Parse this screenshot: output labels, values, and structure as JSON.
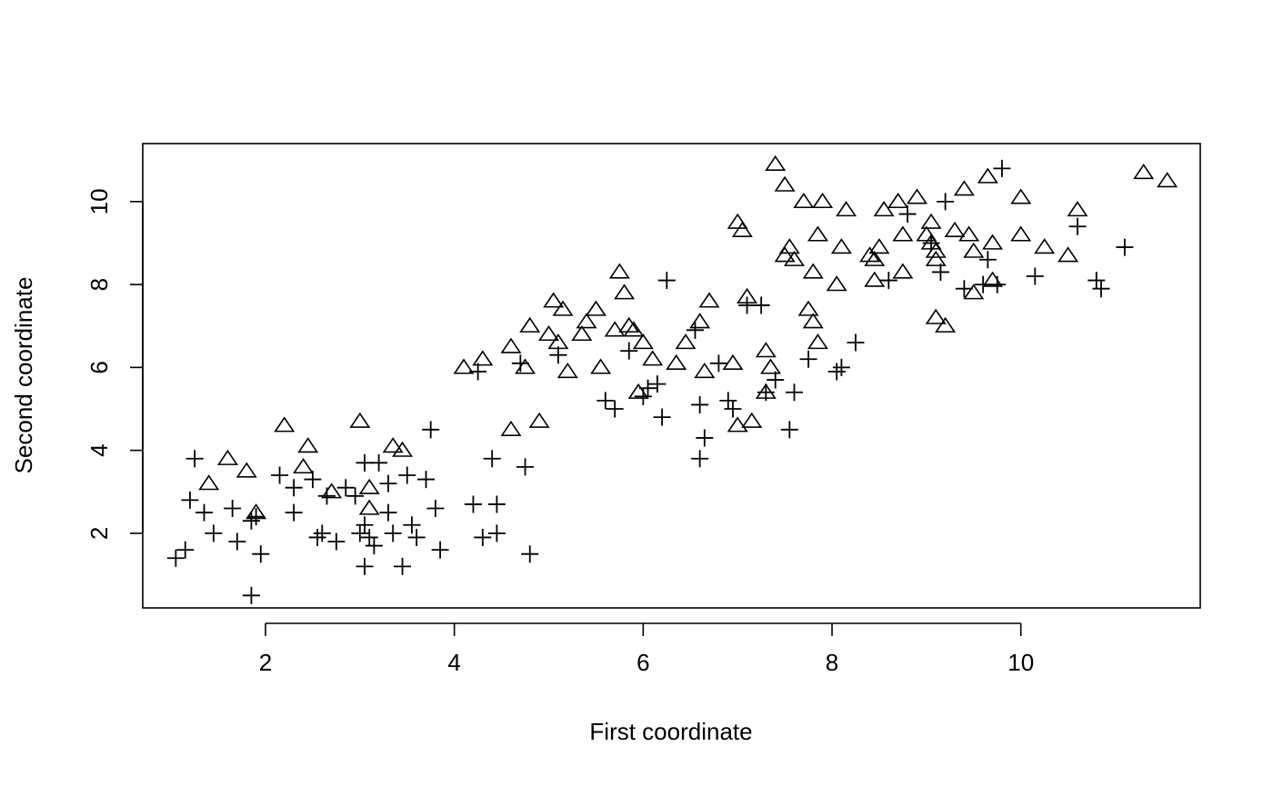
{
  "chart_data": {
    "type": "scatter",
    "title": "",
    "xlabel": "First coordinate",
    "ylabel": "Second coordinate",
    "xlim": [
      0.7,
      11.9
    ],
    "ylim": [
      0.2,
      11.4
    ],
    "xticks": [
      2,
      4,
      6,
      8,
      10
    ],
    "yticks": [
      2,
      4,
      6,
      8,
      10
    ],
    "grid": false,
    "legend": "none",
    "series": [
      {
        "marker": "triangle",
        "color": "#000000",
        "points": [
          [
            1.4,
            3.2
          ],
          [
            1.6,
            3.8
          ],
          [
            1.8,
            3.5
          ],
          [
            1.9,
            2.5
          ],
          [
            2.2,
            4.6
          ],
          [
            2.4,
            3.6
          ],
          [
            2.45,
            4.1
          ],
          [
            2.7,
            3.0
          ],
          [
            3.0,
            4.7
          ],
          [
            3.1,
            2.6
          ],
          [
            3.1,
            3.1
          ],
          [
            3.35,
            4.1
          ],
          [
            3.45,
            4.0
          ],
          [
            4.1,
            6.0
          ],
          [
            4.3,
            6.2
          ],
          [
            4.6,
            4.5
          ],
          [
            4.6,
            6.5
          ],
          [
            4.75,
            6.0
          ],
          [
            4.8,
            7.0
          ],
          [
            4.9,
            4.7
          ],
          [
            5.0,
            6.8
          ],
          [
            5.05,
            7.6
          ],
          [
            5.1,
            6.6
          ],
          [
            5.15,
            7.4
          ],
          [
            5.2,
            5.9
          ],
          [
            5.35,
            6.8
          ],
          [
            5.4,
            7.1
          ],
          [
            5.5,
            7.4
          ],
          [
            5.55,
            6.0
          ],
          [
            5.7,
            6.9
          ],
          [
            5.75,
            8.3
          ],
          [
            5.8,
            7.8
          ],
          [
            5.85,
            7.0
          ],
          [
            5.9,
            6.9
          ],
          [
            5.95,
            5.4
          ],
          [
            6.0,
            6.6
          ],
          [
            6.1,
            6.2
          ],
          [
            6.35,
            6.1
          ],
          [
            6.45,
            6.6
          ],
          [
            6.6,
            7.1
          ],
          [
            6.65,
            5.9
          ],
          [
            6.7,
            7.6
          ],
          [
            6.95,
            6.1
          ],
          [
            7.0,
            4.6
          ],
          [
            7.0,
            9.5
          ],
          [
            7.05,
            9.3
          ],
          [
            7.1,
            7.7
          ],
          [
            7.15,
            4.7
          ],
          [
            7.3,
            6.4
          ],
          [
            7.3,
            5.4
          ],
          [
            7.35,
            6.0
          ],
          [
            7.4,
            10.9
          ],
          [
            7.5,
            10.4
          ],
          [
            7.5,
            8.7
          ],
          [
            7.55,
            8.9
          ],
          [
            7.6,
            8.6
          ],
          [
            7.7,
            10.0
          ],
          [
            7.75,
            7.4
          ],
          [
            7.8,
            7.1
          ],
          [
            7.8,
            8.3
          ],
          [
            7.85,
            6.6
          ],
          [
            7.85,
            9.2
          ],
          [
            7.9,
            10.0
          ],
          [
            8.05,
            8.0
          ],
          [
            8.1,
            8.9
          ],
          [
            8.15,
            9.8
          ],
          [
            8.4,
            8.7
          ],
          [
            8.45,
            8.6
          ],
          [
            8.45,
            8.1
          ],
          [
            8.5,
            8.9
          ],
          [
            8.55,
            9.8
          ],
          [
            8.7,
            10.0
          ],
          [
            8.75,
            8.3
          ],
          [
            8.75,
            9.2
          ],
          [
            8.9,
            10.1
          ],
          [
            9.0,
            9.2
          ],
          [
            9.05,
            9.5
          ],
          [
            9.05,
            9.0
          ],
          [
            9.1,
            8.8
          ],
          [
            9.1,
            8.6
          ],
          [
            9.1,
            7.2
          ],
          [
            9.2,
            7.0
          ],
          [
            9.3,
            9.3
          ],
          [
            9.4,
            10.3
          ],
          [
            9.45,
            9.2
          ],
          [
            9.5,
            8.8
          ],
          [
            9.5,
            7.8
          ],
          [
            9.65,
            10.6
          ],
          [
            9.7,
            9.0
          ],
          [
            9.7,
            8.1
          ],
          [
            10.0,
            10.1
          ],
          [
            10.0,
            9.2
          ],
          [
            10.25,
            8.9
          ],
          [
            10.5,
            8.7
          ],
          [
            10.6,
            9.8
          ],
          [
            11.3,
            10.7
          ],
          [
            11.55,
            10.5
          ]
        ]
      },
      {
        "marker": "plus",
        "color": "#000000",
        "points": [
          [
            1.05,
            1.4
          ],
          [
            1.15,
            1.6
          ],
          [
            1.2,
            2.8
          ],
          [
            1.25,
            3.8
          ],
          [
            1.35,
            2.5
          ],
          [
            1.45,
            2.0
          ],
          [
            1.65,
            2.6
          ],
          [
            1.7,
            1.8
          ],
          [
            1.85,
            0.5
          ],
          [
            1.85,
            2.3
          ],
          [
            1.9,
            2.4
          ],
          [
            1.95,
            1.5
          ],
          [
            2.15,
            3.4
          ],
          [
            2.3,
            3.1
          ],
          [
            2.3,
            2.5
          ],
          [
            2.5,
            3.3
          ],
          [
            2.55,
            1.9
          ],
          [
            2.6,
            2.0
          ],
          [
            2.65,
            2.9
          ],
          [
            2.75,
            1.8
          ],
          [
            2.85,
            3.1
          ],
          [
            2.95,
            2.9
          ],
          [
            3.0,
            2.0
          ],
          [
            3.05,
            1.2
          ],
          [
            3.05,
            2.2
          ],
          [
            3.05,
            3.7
          ],
          [
            3.1,
            1.9
          ],
          [
            3.15,
            1.7
          ],
          [
            3.2,
            3.7
          ],
          [
            3.3,
            2.5
          ],
          [
            3.3,
            3.2
          ],
          [
            3.35,
            2.0
          ],
          [
            3.45,
            1.2
          ],
          [
            3.5,
            3.4
          ],
          [
            3.55,
            2.2
          ],
          [
            3.6,
            1.9
          ],
          [
            3.7,
            3.3
          ],
          [
            3.75,
            4.5
          ],
          [
            3.8,
            2.6
          ],
          [
            3.85,
            1.6
          ],
          [
            4.2,
            2.7
          ],
          [
            4.25,
            5.9
          ],
          [
            4.3,
            1.9
          ],
          [
            4.4,
            3.8
          ],
          [
            4.45,
            2.0
          ],
          [
            4.45,
            2.7
          ],
          [
            4.7,
            6.1
          ],
          [
            4.75,
            3.6
          ],
          [
            4.8,
            1.5
          ],
          [
            5.1,
            6.3
          ],
          [
            5.6,
            5.2
          ],
          [
            5.7,
            5.0
          ],
          [
            5.85,
            6.4
          ],
          [
            6.0,
            5.3
          ],
          [
            6.05,
            5.5
          ],
          [
            6.15,
            5.6
          ],
          [
            6.2,
            4.8
          ],
          [
            6.25,
            8.1
          ],
          [
            6.55,
            6.9
          ],
          [
            6.6,
            3.8
          ],
          [
            6.6,
            5.1
          ],
          [
            6.65,
            4.3
          ],
          [
            6.8,
            6.1
          ],
          [
            6.9,
            5.2
          ],
          [
            6.95,
            5.0
          ],
          [
            7.1,
            7.5
          ],
          [
            7.25,
            7.5
          ],
          [
            7.3,
            5.4
          ],
          [
            7.4,
            5.7
          ],
          [
            7.6,
            5.4
          ],
          [
            7.55,
            4.5
          ],
          [
            7.75,
            6.2
          ],
          [
            8.05,
            5.9
          ],
          [
            8.1,
            6.0
          ],
          [
            8.25,
            6.6
          ],
          [
            8.6,
            8.1
          ],
          [
            8.8,
            9.7
          ],
          [
            9.05,
            9.0
          ],
          [
            9.15,
            8.3
          ],
          [
            9.2,
            10.0
          ],
          [
            9.4,
            7.9
          ],
          [
            9.6,
            8.0
          ],
          [
            9.65,
            8.6
          ],
          [
            9.75,
            8.0
          ],
          [
            9.8,
            10.8
          ],
          [
            10.15,
            8.2
          ],
          [
            10.6,
            9.4
          ],
          [
            10.8,
            8.1
          ],
          [
            10.85,
            7.9
          ],
          [
            11.1,
            8.9
          ]
        ]
      }
    ]
  }
}
